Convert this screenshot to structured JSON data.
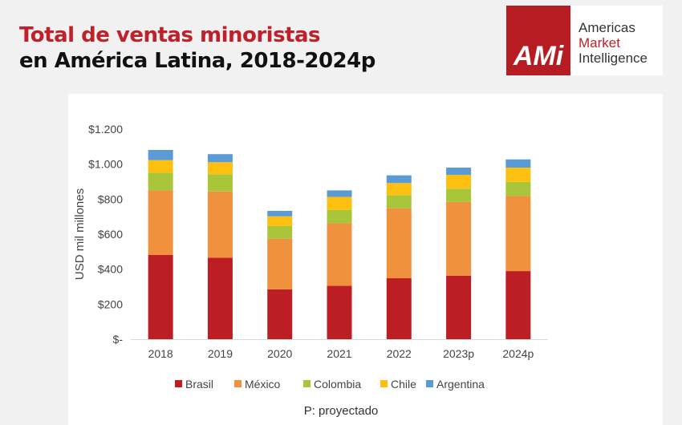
{
  "header": {
    "title_line1": "Total de ventas minoristas",
    "title_line2": "en América Latina, 2018-2024p"
  },
  "logo": {
    "mark": "AMi",
    "line1": "Americas",
    "line2": "Market",
    "line3": "Intelligence"
  },
  "footnote": "P: proyectado",
  "chart_data": {
    "type": "bar",
    "stacked": true,
    "ylabel": "USD mil millones",
    "ylim": [
      0,
      1200
    ],
    "yticks": [
      0,
      200,
      400,
      600,
      800,
      1000,
      1200
    ],
    "ytick_labels": [
      "$-",
      "$200",
      "$400",
      "$600",
      "$800",
      "$1.000",
      "$1.200"
    ],
    "categories": [
      "2018",
      "2019",
      "2020",
      "2021",
      "2022",
      "2023p",
      "2024p"
    ],
    "legend_position": "bottom",
    "grid": false,
    "series": [
      {
        "name": "Brasil",
        "color": "#bd1e24",
        "values": [
          481,
          465,
          285,
          305,
          348,
          363,
          389
        ]
      },
      {
        "name": "México",
        "color": "#f0913d",
        "values": [
          369,
          379,
          289,
          357,
          400,
          421,
          429
        ]
      },
      {
        "name": "Colombia",
        "color": "#a9c63a",
        "values": [
          101,
          98,
          72,
          76,
          75,
          76,
          81
        ]
      },
      {
        "name": "Chile",
        "color": "#fdbf10",
        "values": [
          72,
          69,
          56,
          75,
          69,
          79,
          81
        ]
      },
      {
        "name": "Argentina",
        "color": "#5b9bd5",
        "values": [
          58,
          46,
          31,
          37,
          44,
          41,
          47
        ]
      }
    ]
  }
}
